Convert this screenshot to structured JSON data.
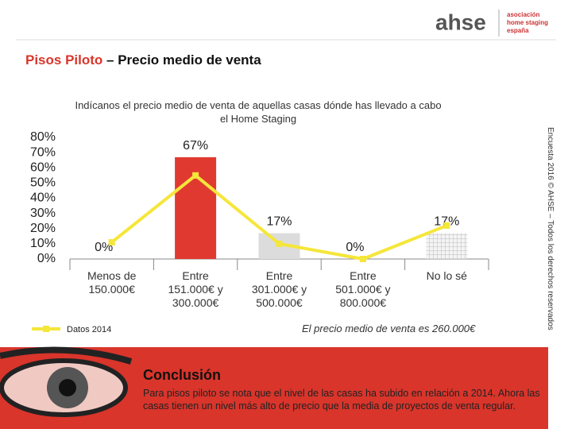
{
  "header": {
    "logo": "ahse",
    "logo_subtitle": "asociación home staging españa",
    "title_highlight": "Pisos Piloto",
    "title_rest": "– Precio medio de venta"
  },
  "chart_data": {
    "type": "bar",
    "subtitle": "Indícanos el precio medio de venta de aquellas casas dónde has llevado a cabo el Home Staging",
    "categories": [
      "Menos de 150.000€",
      "Entre 151.000€ y 300.000€",
      "Entre 301.000€ y 500.000€",
      "Entre 501.000€ y 800.000€",
      "No lo sé"
    ],
    "series": [
      {
        "type": "bar",
        "colors": [
          "#e03a30",
          "#e03a30",
          "#dcdcdc",
          "#dcdcdc",
          "#f4f4f4"
        ],
        "values": [
          0,
          67,
          17,
          0,
          17
        ],
        "value_labels": [
          "0%",
          "67%",
          "17%",
          "0%",
          "17%"
        ]
      },
      {
        "type": "line",
        "name": "Datos 2014",
        "color": "#f5e63a",
        "values": [
          11,
          55,
          10,
          0,
          22
        ]
      }
    ],
    "ylim": [
      0,
      80
    ],
    "yticks": [
      {
        "value": 80,
        "label": "80%"
      },
      {
        "value": 70,
        "label": "70%"
      },
      {
        "value": 60,
        "label": "60%"
      },
      {
        "value": 50,
        "label": "50%"
      },
      {
        "value": 40,
        "label": "40%"
      },
      {
        "value": 30,
        "label": "30%"
      },
      {
        "value": 20,
        "label": "20%"
      },
      {
        "value": 10,
        "label": "10%"
      },
      {
        "value": 0,
        "label": "0%"
      }
    ],
    "annotation": "El precio medio de venta es 260.000€",
    "source": "Encuesta 2016 © AHSE – Todos los derechos reservados"
  },
  "conclusion": {
    "title": "Conclusión",
    "text": "Para pisos piloto se nota que el nivel de las casas ha subido en relación a 2014. Ahora las casas tienen un nivel más alto de precio que la media de proyectos de venta regular."
  }
}
